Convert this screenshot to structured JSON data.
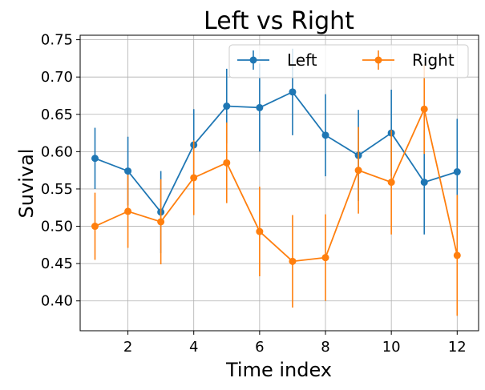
{
  "chart_data": {
    "type": "line",
    "title": "Left vs Right",
    "xlabel": "Time index",
    "ylabel": "Suvival",
    "x": [
      1,
      2,
      3,
      4,
      5,
      6,
      7,
      8,
      9,
      10,
      11,
      12
    ],
    "xlim": [
      0.55,
      12.65
    ],
    "ylim": [
      0.36,
      0.756
    ],
    "xticks": [
      2,
      4,
      6,
      8,
      10,
      12
    ],
    "yticks": [
      0.4,
      0.45,
      0.5,
      0.55,
      0.6,
      0.65,
      0.7,
      0.75
    ],
    "ytick_labels": [
      "0.40",
      "0.45",
      "0.50",
      "0.55",
      "0.60",
      "0.65",
      "0.70",
      "0.75"
    ],
    "grid": true,
    "legend_placement": "top-right",
    "series": [
      {
        "name": "Left",
        "color": "#1f77b4",
        "values": [
          0.591,
          0.574,
          0.519,
          0.609,
          0.661,
          0.659,
          0.68,
          0.622,
          0.595,
          0.625,
          0.559,
          0.573
        ],
        "errors": [
          0.041,
          0.046,
          0.055,
          0.048,
          0.05,
          0.059,
          0.058,
          0.055,
          0.061,
          0.058,
          0.07,
          0.071
        ]
      },
      {
        "name": "Right",
        "color": "#ff7f0e",
        "values": [
          0.5,
          0.52,
          0.506,
          0.565,
          0.585,
          0.493,
          0.453,
          0.458,
          0.575,
          0.559,
          0.657,
          0.461
        ],
        "errors": [
          0.045,
          0.049,
          0.057,
          0.05,
          0.054,
          0.06,
          0.062,
          0.058,
          0.058,
          0.07,
          0.06,
          0.081
        ]
      }
    ]
  }
}
